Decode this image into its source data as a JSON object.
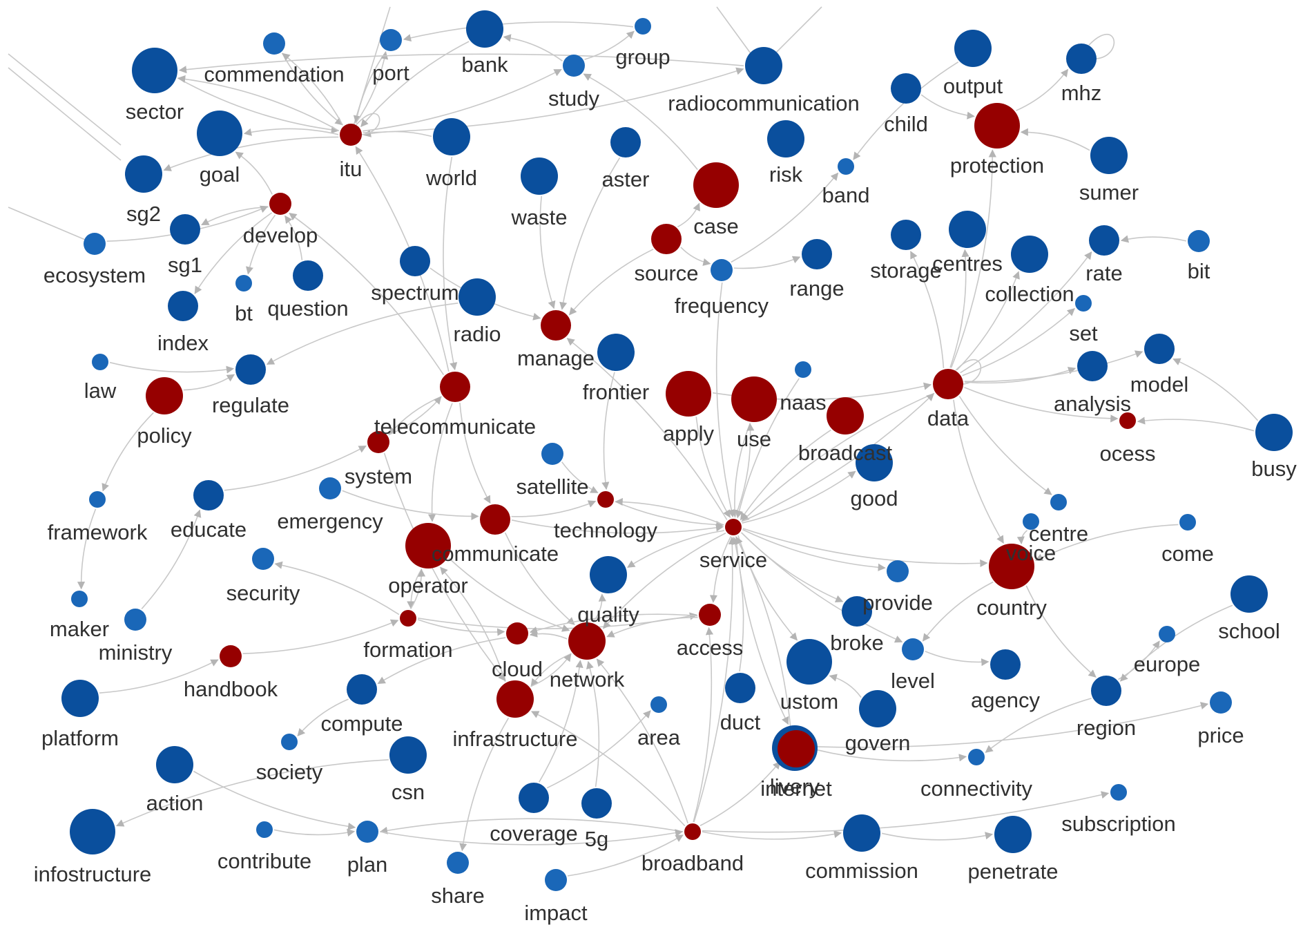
{
  "colors": {
    "blue": "#0a4f9d",
    "blue_light": "#1a67b8",
    "red": "#960000",
    "edge": "#c8c8c8",
    "label": "#303030"
  },
  "legend": {},
  "nodes": [
    {
      "id": "commendation",
      "label": "commendation",
      "group": "blue",
      "weight": 1
    },
    {
      "id": "port",
      "label": "port",
      "group": "blue",
      "weight": 1
    },
    {
      "id": "bank",
      "label": "bank",
      "group": "blue",
      "weight": 3
    },
    {
      "id": "group",
      "label": "group",
      "group": "blue",
      "weight": 0
    },
    {
      "id": "study",
      "label": "study",
      "group": "blue",
      "weight": 1
    },
    {
      "id": "radiocommunication",
      "label": "radiocommunication",
      "group": "blue",
      "weight": 3
    },
    {
      "id": "output",
      "label": "output",
      "group": "blue",
      "weight": 3
    },
    {
      "id": "mhz",
      "label": "mhz",
      "group": "blue",
      "weight": 2
    },
    {
      "id": "sector",
      "label": "sector",
      "group": "blue",
      "weight": 4
    },
    {
      "id": "itu",
      "label": "itu",
      "group": "red",
      "weight": 1
    },
    {
      "id": "world",
      "label": "world",
      "group": "blue",
      "weight": 3
    },
    {
      "id": "goal",
      "label": "goal",
      "group": "blue",
      "weight": 4
    },
    {
      "id": "child",
      "label": "child",
      "group": "blue",
      "weight": 2
    },
    {
      "id": "protection",
      "label": "protection",
      "group": "red",
      "weight": 4
    },
    {
      "id": "risk",
      "label": "risk",
      "group": "blue",
      "weight": 3
    },
    {
      "id": "aster",
      "label": "aster",
      "group": "blue",
      "weight": 2
    },
    {
      "id": "waste",
      "label": "waste",
      "group": "blue",
      "weight": 3
    },
    {
      "id": "case",
      "label": "case",
      "group": "red",
      "weight": 4
    },
    {
      "id": "sg2",
      "label": "sg2",
      "group": "blue",
      "weight": 3
    },
    {
      "id": "band",
      "label": "band",
      "group": "blue",
      "weight": 0
    },
    {
      "id": "sumer",
      "label": "sumer",
      "group": "blue",
      "weight": 3
    },
    {
      "id": "develop",
      "label": "develop",
      "group": "red",
      "weight": 1
    },
    {
      "id": "ecosystem",
      "label": "ecosystem",
      "group": "blue",
      "weight": 1
    },
    {
      "id": "sg1",
      "label": "sg1",
      "group": "blue",
      "weight": 2
    },
    {
      "id": "source",
      "label": "source",
      "group": "red",
      "weight": 2
    },
    {
      "id": "range",
      "label": "range",
      "group": "blue",
      "weight": 2
    },
    {
      "id": "storage",
      "label": "storage",
      "group": "blue",
      "weight": 2
    },
    {
      "id": "centres",
      "label": "centres",
      "group": "blue",
      "weight": 3
    },
    {
      "id": "collection",
      "label": "collection",
      "group": "blue",
      "weight": 3
    },
    {
      "id": "rate",
      "label": "rate",
      "group": "blue",
      "weight": 2
    },
    {
      "id": "bit",
      "label": "bit",
      "group": "blue",
      "weight": 1
    },
    {
      "id": "bt",
      "label": "bt",
      "group": "blue",
      "weight": 0
    },
    {
      "id": "question",
      "label": "question",
      "group": "blue",
      "weight": 2
    },
    {
      "id": "spectrum",
      "label": "spectrum",
      "group": "blue",
      "weight": 2
    },
    {
      "id": "frequency",
      "label": "frequency",
      "group": "blue",
      "weight": 1
    },
    {
      "id": "index",
      "label": "index",
      "group": "blue",
      "weight": 2
    },
    {
      "id": "radio",
      "label": "radio",
      "group": "blue",
      "weight": 3
    },
    {
      "id": "manage",
      "label": "manage",
      "group": "red",
      "weight": 2
    },
    {
      "id": "set",
      "label": "set",
      "group": "blue",
      "weight": 0
    },
    {
      "id": "law",
      "label": "law",
      "group": "blue",
      "weight": 0
    },
    {
      "id": "regulate",
      "label": "regulate",
      "group": "blue",
      "weight": 2
    },
    {
      "id": "frontier",
      "label": "frontier",
      "group": "blue",
      "weight": 3
    },
    {
      "id": "model",
      "label": "model",
      "group": "blue",
      "weight": 2
    },
    {
      "id": "policy",
      "label": "policy",
      "group": "red",
      "weight": 3
    },
    {
      "id": "telecommunicate",
      "label": "telecommunicate",
      "group": "red",
      "weight": 2
    },
    {
      "id": "apply",
      "label": "apply",
      "group": "red",
      "weight": 4
    },
    {
      "id": "use",
      "label": "use",
      "group": "red",
      "weight": 4
    },
    {
      "id": "naas",
      "label": "naas",
      "group": "blue",
      "weight": 0
    },
    {
      "id": "broadcast",
      "label": "broadcast",
      "group": "red",
      "weight": 3
    },
    {
      "id": "data",
      "label": "data",
      "group": "red",
      "weight": 2
    },
    {
      "id": "analysis",
      "label": "analysis",
      "group": "blue",
      "weight": 2
    },
    {
      "id": "process",
      "label": "ocess",
      "group": "red",
      "weight": 0
    },
    {
      "id": "busy",
      "label": "busy",
      "group": "blue",
      "weight": 3
    },
    {
      "id": "system",
      "label": "system",
      "group": "red",
      "weight": 1
    },
    {
      "id": "satellite",
      "label": "satellite",
      "group": "blue",
      "weight": 1
    },
    {
      "id": "good",
      "label": "good",
      "group": "blue",
      "weight": 3
    },
    {
      "id": "centre",
      "label": "centre",
      "group": "blue",
      "weight": 0
    },
    {
      "id": "framework",
      "label": "framework",
      "group": "blue",
      "weight": 0
    },
    {
      "id": "educate",
      "label": "educate",
      "group": "blue",
      "weight": 2
    },
    {
      "id": "emergency",
      "label": "emergency",
      "group": "blue",
      "weight": 1
    },
    {
      "id": "technology",
      "label": "technology",
      "group": "red",
      "weight": 0
    },
    {
      "id": "communicate",
      "label": "communicate",
      "group": "red",
      "weight": 2
    },
    {
      "id": "service",
      "label": "service",
      "group": "red",
      "weight": 0
    },
    {
      "id": "provide",
      "label": "provide",
      "group": "blue",
      "weight": 1
    },
    {
      "id": "voice",
      "label": "voice",
      "group": "blue",
      "weight": 0
    },
    {
      "id": "come",
      "label": "come",
      "group": "blue",
      "weight": 0
    },
    {
      "id": "operator",
      "label": "operator",
      "group": "red",
      "weight": 4
    },
    {
      "id": "security",
      "label": "security",
      "group": "blue",
      "weight": 1
    },
    {
      "id": "quality",
      "label": "quality",
      "group": "blue",
      "weight": 3
    },
    {
      "id": "country",
      "label": "country",
      "group": "red",
      "weight": 4
    },
    {
      "id": "school",
      "label": "school",
      "group": "blue",
      "weight": 3
    },
    {
      "id": "maker",
      "label": "maker",
      "group": "blue",
      "weight": 0
    },
    {
      "id": "ministry",
      "label": "ministry",
      "group": "blue",
      "weight": 1
    },
    {
      "id": "formation",
      "label": "formation",
      "group": "red",
      "weight": 0
    },
    {
      "id": "access",
      "label": "access",
      "group": "red",
      "weight": 1
    },
    {
      "id": "broke",
      "label": "broke",
      "group": "blue",
      "weight": 2
    },
    {
      "id": "level",
      "label": "level",
      "group": "blue",
      "weight": 1
    },
    {
      "id": "europe",
      "label": "europe",
      "group": "blue",
      "weight": 0
    },
    {
      "id": "handbook",
      "label": "handbook",
      "group": "red",
      "weight": 1
    },
    {
      "id": "cloud",
      "label": "cloud",
      "group": "red",
      "weight": 1
    },
    {
      "id": "network",
      "label": "network",
      "group": "red",
      "weight": 3
    },
    {
      "id": "custom",
      "label": "ustom",
      "group": "blue",
      "weight": 4
    },
    {
      "id": "agency",
      "label": "agency",
      "group": "blue",
      "weight": 2
    },
    {
      "id": "region",
      "label": "region",
      "group": "blue",
      "weight": 2
    },
    {
      "id": "platform",
      "label": "platform",
      "group": "blue",
      "weight": 3
    },
    {
      "id": "compute",
      "label": "compute",
      "group": "blue",
      "weight": 2
    },
    {
      "id": "infrastructure",
      "label": "infrastructure",
      "group": "red",
      "weight": 3
    },
    {
      "id": "area",
      "label": "area",
      "group": "blue",
      "weight": 0
    },
    {
      "id": "duct",
      "label": "duct",
      "group": "blue",
      "weight": 2
    },
    {
      "id": "delivery",
      "label": "livery",
      "group": "blue",
      "weight": 4
    },
    {
      "id": "price",
      "label": "price",
      "group": "blue",
      "weight": 1
    },
    {
      "id": "society",
      "label": "society",
      "group": "blue",
      "weight": 0
    },
    {
      "id": "govern",
      "label": "govern",
      "group": "blue",
      "weight": 3
    },
    {
      "id": "action",
      "label": "action",
      "group": "blue",
      "weight": 3
    },
    {
      "id": "csn",
      "label": "csn",
      "group": "blue",
      "weight": 3
    },
    {
      "id": "internet",
      "label": "internet",
      "group": "red",
      "weight": 3
    },
    {
      "id": "connectivity",
      "label": "connectivity",
      "group": "blue",
      "weight": 0
    },
    {
      "id": "coverage",
      "label": "coverage",
      "group": "blue",
      "weight": 2
    },
    {
      "id": "5g",
      "label": "5g",
      "group": "blue",
      "weight": 2
    },
    {
      "id": "subscription",
      "label": "subscription",
      "group": "blue",
      "weight": 0
    },
    {
      "id": "infostructure",
      "label": "infostructure",
      "group": "blue",
      "weight": 4
    },
    {
      "id": "contribute",
      "label": "contribute",
      "group": "blue",
      "weight": 0
    },
    {
      "id": "plan",
      "label": "plan",
      "group": "blue",
      "weight": 1
    },
    {
      "id": "broadband",
      "label": "broadband",
      "group": "red",
      "weight": 0
    },
    {
      "id": "commission",
      "label": "commission",
      "group": "blue",
      "weight": 3
    },
    {
      "id": "penetrate",
      "label": "penetrate",
      "group": "blue",
      "weight": 3
    },
    {
      "id": "share",
      "label": "share",
      "group": "blue",
      "weight": 1
    },
    {
      "id": "impact",
      "label": "impact",
      "group": "blue",
      "weight": 1
    }
  ],
  "edges": [
    [
      "sector",
      "itu"
    ],
    [
      "itu",
      "sector"
    ],
    [
      "commendation",
      "itu"
    ],
    [
      "itu",
      "commendation"
    ],
    [
      "port",
      "itu"
    ],
    [
      "itu",
      "port"
    ],
    [
      "bank",
      "itu"
    ],
    [
      "world",
      "itu"
    ],
    [
      "itu",
      "study"
    ],
    [
      "itu",
      "radiocommunication"
    ],
    [
      "itu",
      "goal"
    ],
    [
      "itu",
      "sg2"
    ],
    [
      "itu",
      "itu"
    ],
    [
      "develop",
      "goal"
    ],
    [
      "develop",
      "sg1"
    ],
    [
      "develop",
      "bt"
    ],
    [
      "develop",
      "index"
    ],
    [
      "question",
      "develop"
    ],
    [
      "ecosystem",
      "develop"
    ],
    [
      "telecommunicate",
      "develop"
    ],
    [
      "telecommunicate",
      "itu"
    ],
    [
      "waste",
      "manage"
    ],
    [
      "aster",
      "manage"
    ],
    [
      "spectrum",
      "manage"
    ],
    [
      "source",
      "manage"
    ],
    [
      "case",
      "study"
    ],
    [
      "study",
      "group"
    ],
    [
      "study",
      "bank"
    ],
    [
      "world",
      "telecommunicate"
    ],
    [
      "radio",
      "regulate"
    ],
    [
      "law",
      "regulate"
    ],
    [
      "policy",
      "regulate"
    ],
    [
      "policy",
      "framework"
    ],
    [
      "framework",
      "maker"
    ],
    [
      "telecommunicate",
      "system"
    ],
    [
      "telecommunicate",
      "communicate"
    ],
    [
      "telecommunicate",
      "operator"
    ],
    [
      "satellite",
      "technology"
    ],
    [
      "technology",
      "service"
    ],
    [
      "service",
      "technology"
    ],
    [
      "emergency",
      "communicate"
    ],
    [
      "communicate",
      "technology"
    ],
    [
      "communicate",
      "service"
    ],
    [
      "communicate",
      "network"
    ],
    [
      "operator",
      "formation"
    ],
    [
      "formation",
      "operator"
    ],
    [
      "formation",
      "security"
    ],
    [
      "formation",
      "cloud"
    ],
    [
      "formation",
      "access"
    ],
    [
      "handbook",
      "formation"
    ],
    [
      "platform",
      "handbook"
    ],
    [
      "ministry",
      "educate"
    ],
    [
      "educate",
      "system"
    ],
    [
      "system",
      "telecommunicate"
    ],
    [
      "frequency",
      "band"
    ],
    [
      "frequency",
      "range"
    ],
    [
      "frequency",
      "service"
    ],
    [
      "source",
      "case"
    ],
    [
      "source",
      "frequency"
    ],
    [
      "apply",
      "service"
    ],
    [
      "use",
      "service"
    ],
    [
      "service",
      "use"
    ],
    [
      "broadcast",
      "service"
    ],
    [
      "data",
      "service"
    ],
    [
      "service",
      "data"
    ],
    [
      "data",
      "storage"
    ],
    [
      "data",
      "centres"
    ],
    [
      "data",
      "collection"
    ],
    [
      "data",
      "rate"
    ],
    [
      "bit",
      "rate"
    ],
    [
      "data",
      "set"
    ],
    [
      "data",
      "analysis"
    ],
    [
      "data",
      "model"
    ],
    [
      "data",
      "process"
    ],
    [
      "busy",
      "process"
    ],
    [
      "busy",
      "model"
    ],
    [
      "data",
      "centre"
    ],
    [
      "data",
      "country"
    ],
    [
      "data",
      "protection"
    ],
    [
      "data",
      "data"
    ],
    [
      "child",
      "protection"
    ],
    [
      "sumer",
      "protection"
    ],
    [
      "protection",
      "mhz"
    ],
    [
      "output",
      "band"
    ],
    [
      "mhz",
      "mhz"
    ],
    [
      "service",
      "good"
    ],
    [
      "service",
      "provide"
    ],
    [
      "service",
      "country"
    ],
    [
      "service",
      "broke"
    ],
    [
      "service",
      "level"
    ],
    [
      "service",
      "custom"
    ],
    [
      "service",
      "delivery"
    ],
    [
      "service",
      "network"
    ],
    [
      "service",
      "quality"
    ],
    [
      "service",
      "access"
    ],
    [
      "service",
      "manage"
    ],
    [
      "access",
      "network"
    ],
    [
      "access",
      "cloud"
    ],
    [
      "network",
      "cloud"
    ],
    [
      "network",
      "infrastructure"
    ],
    [
      "cloud",
      "compute"
    ],
    [
      "compute",
      "society"
    ],
    [
      "csn",
      "infostructure"
    ],
    [
      "infrastructure",
      "share"
    ],
    [
      "broadband",
      "infrastructure"
    ],
    [
      "broadband",
      "plan"
    ],
    [
      "plan",
      "broadband"
    ],
    [
      "contribute",
      "plan"
    ],
    [
      "action",
      "plan"
    ],
    [
      "broadband",
      "network"
    ],
    [
      "broadband",
      "access"
    ],
    [
      "broadband",
      "internet"
    ],
    [
      "broadband",
      "commission"
    ],
    [
      "commission",
      "penetrate"
    ],
    [
      "broadband",
      "subscription"
    ],
    [
      "broadband",
      "service"
    ],
    [
      "impact",
      "broadband"
    ],
    [
      "coverage",
      "area"
    ],
    [
      "internet",
      "connectivity"
    ],
    [
      "internet",
      "price"
    ],
    [
      "region",
      "connectivity"
    ],
    [
      "country",
      "region"
    ],
    [
      "region",
      "europe"
    ],
    [
      "school",
      "region"
    ],
    [
      "come",
      "country"
    ],
    [
      "voice",
      "country"
    ],
    [
      "country",
      "level"
    ],
    [
      "level",
      "agency"
    ],
    [
      "govern",
      "custom"
    ],
    [
      "duct",
      "service"
    ],
    [
      "5g",
      "network"
    ],
    [
      "coverage",
      "network"
    ],
    [
      "internet",
      "service"
    ],
    [
      "network",
      "quality"
    ],
    [
      "operator",
      "network"
    ],
    [
      "infrastructure",
      "operator"
    ],
    [
      "infrastructure",
      "network"
    ],
    [
      "system",
      "infrastructure"
    ],
    [
      "apply",
      "data"
    ],
    [
      "naas",
      "service"
    ],
    [
      "frontier",
      "technology"
    ],
    [
      "radiocommunication",
      "sector"
    ],
    [
      "group",
      "port"
    ]
  ]
}
